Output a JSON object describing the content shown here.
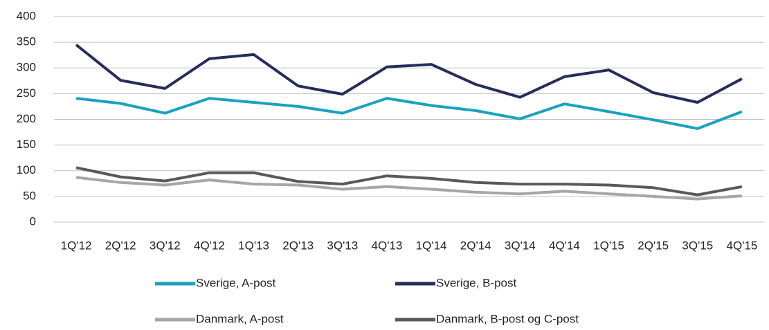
{
  "chart_data": {
    "type": "line",
    "categories": [
      "1Q'12",
      "2Q'12",
      "3Q'12",
      "4Q'12",
      "1Q'13",
      "2Q'13",
      "3Q'13",
      "4Q'13",
      "1Q'14",
      "2Q'14",
      "3Q'14",
      "4Q'14",
      "1Q'15",
      "2Q'15",
      "3Q'15",
      "4Q'15"
    ],
    "series": [
      {
        "name": "Sverige, A-post",
        "color": "#1ba1be",
        "values": [
          241,
          231,
          212,
          241,
          233,
          225,
          212,
          241,
          227,
          217,
          201,
          230,
          215,
          199,
          182,
          215
        ]
      },
      {
        "name": "Sverige, B-post",
        "color": "#262d5c",
        "values": [
          345,
          276,
          260,
          318,
          326,
          265,
          249,
          302,
          307,
          268,
          243,
          283,
          296,
          252,
          233,
          279
        ]
      },
      {
        "name": "Danmark, A-post",
        "color": "#a6a6a6",
        "values": [
          87,
          77,
          72,
          82,
          74,
          72,
          64,
          69,
          64,
          58,
          55,
          60,
          55,
          50,
          45,
          51
        ]
      },
      {
        "name": "Danmark, B-post og C-post",
        "color": "#595959",
        "values": [
          106,
          88,
          80,
          96,
          96,
          79,
          74,
          90,
          85,
          77,
          74,
          74,
          72,
          67,
          53,
          69
        ]
      }
    ],
    "ylim": [
      0,
      400
    ],
    "yticks": [
      0,
      50,
      100,
      150,
      200,
      250,
      300,
      350,
      400
    ],
    "grid": true
  }
}
